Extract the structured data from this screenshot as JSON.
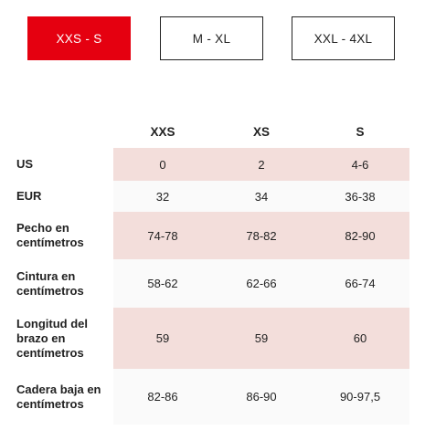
{
  "tabs": [
    {
      "label": "XXS - S",
      "active": true
    },
    {
      "label": "M - XL",
      "active": false
    },
    {
      "label": "XXL - 4XL",
      "active": false
    }
  ],
  "table": {
    "headers": [
      "",
      "XXS",
      "XS",
      "S"
    ],
    "rows": [
      {
        "label": "US",
        "values": [
          "0",
          "2",
          "4-6"
        ]
      },
      {
        "label": "EUR",
        "values": [
          "32",
          "34",
          "36-38"
        ]
      },
      {
        "label": "Pecho en centímetros",
        "values": [
          "74-78",
          "78-82",
          "82-90"
        ]
      },
      {
        "label": "Cintura en centímetros",
        "values": [
          "58-62",
          "62-66",
          "66-74"
        ]
      },
      {
        "label": "Longitud del brazo en centímetros",
        "values": [
          "59",
          "59",
          "60"
        ]
      },
      {
        "label": "Cadera baja en centímetros",
        "values": [
          "82-86",
          "86-90",
          "90-97,5"
        ]
      }
    ]
  },
  "colors": {
    "accent": "#e50010",
    "row_shade": "#f3dedb",
    "row_plain": "#fafafa",
    "text": "#222222"
  }
}
